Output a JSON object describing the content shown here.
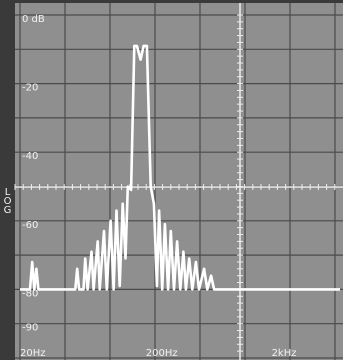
{
  "chart_data": {
    "type": "line",
    "side_label": "LOG",
    "x": [
      20,
      24,
      25,
      26,
      27,
      28,
      32,
      55,
      57,
      59,
      64,
      66,
      69,
      74,
      77,
      83,
      86,
      93,
      98,
      105,
      111,
      117,
      124,
      131,
      138,
      144,
      153,
      162,
      170,
      182,
      192,
      204,
      219,
      232,
      245,
      255,
      270,
      284,
      301,
      316,
      335,
      355,
      376,
      398,
      417,
      443,
      469,
      501,
      530,
      582,
      617,
      661,
      699,
      7000
    ],
    "series": [
      {
        "color": "#ffffff",
        "values": [
          -80,
          -80,
          -72,
          -80,
          -74,
          -80,
          -80,
          -80,
          -74,
          -80,
          -80,
          -71,
          -80,
          -69,
          -80,
          -66,
          -80,
          -63,
          -80,
          -60,
          -80,
          -57,
          -79,
          -55,
          -71,
          -50,
          -51,
          -9,
          -9,
          -13,
          -9,
          -9,
          -50,
          -55,
          -79,
          -57,
          -80,
          -61,
          -80,
          -63,
          -80,
          -66,
          -80,
          -69,
          -80,
          -71,
          -80,
          -72,
          -80,
          -74,
          -80,
          -76,
          -80,
          -80
        ]
      }
    ],
    "xlim": [
      20,
      7000
    ],
    "log_x": true,
    "xticks": [
      {
        "value": 20,
        "label": "20Hz"
      },
      {
        "value": 200,
        "label": "200Hz"
      },
      {
        "value": 2000,
        "label": "2kHz"
      }
    ],
    "ylim": [
      -100,
      0
    ],
    "yticks": [
      {
        "value": 0,
        "label": "0 dB"
      },
      -20,
      -40,
      -60,
      -80,
      -90
    ]
  }
}
